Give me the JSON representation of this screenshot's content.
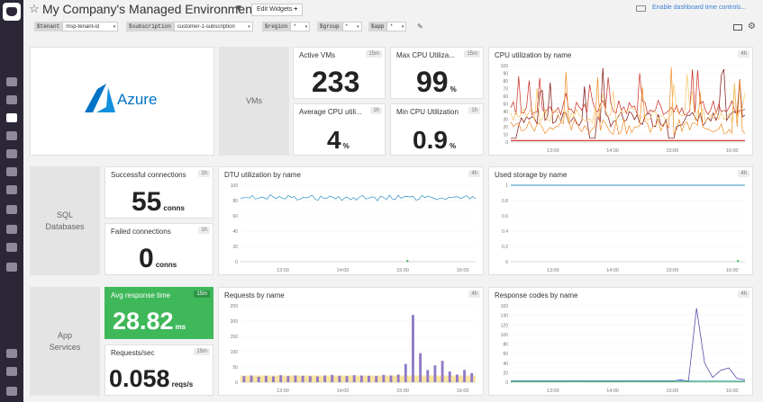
{
  "header": {
    "title": "My Company's Managed Environment",
    "edit_widgets_label": "Edit Widgets",
    "time_controls_link": "Enable dashboard time controls...",
    "template_vars": [
      {
        "name": "$tenant",
        "value": "msp-tenant-id"
      },
      {
        "name": "$subscription",
        "value": "customer-1-subscription"
      },
      {
        "name": "$region",
        "value": "*"
      },
      {
        "name": "$group",
        "value": "*"
      },
      {
        "name": "$app",
        "value": "*"
      }
    ]
  },
  "colors": {
    "sidebar": "#2c2736",
    "good": "#3fb85a",
    "link": "#3d7fd6",
    "azure": "#0072c6"
  },
  "logo": {
    "text": "Azure"
  },
  "vms": {
    "group_label": "VMs",
    "active_vms": {
      "title": "Active VMs",
      "badge": "15m",
      "value": "233"
    },
    "max_cpu": {
      "title": "Max CPU Utiliza...",
      "badge": "15m",
      "value": "99",
      "unit": "%"
    },
    "avg_cpu": {
      "title": "Average CPU utili...",
      "badge": "1h",
      "value": "4",
      "unit": "%"
    },
    "min_cpu": {
      "title": "Min CPU Utilization",
      "badge": "1h",
      "value": "0.9",
      "unit": "%"
    },
    "cpu_by_name": {
      "title": "CPU utilization by name",
      "badge": "4h"
    }
  },
  "sql": {
    "group_label": "SQL\nDatabases",
    "successful": {
      "title": "Successful connections",
      "badge": "1h",
      "value": "55",
      "unit": "conns"
    },
    "failed": {
      "title": "Failed connections",
      "badge": "1h",
      "value": "0",
      "unit": "conns"
    },
    "dtu": {
      "title": "DTU utilization by name",
      "badge": "4h"
    },
    "storage": {
      "title": "Used storage by name",
      "badge": "4h"
    }
  },
  "app": {
    "group_label": "App\nServices",
    "avg_response": {
      "title": "Avg response time",
      "badge": "15m",
      "value": "28.82",
      "unit": "ms"
    },
    "requests_sec": {
      "title": "Requests/sec",
      "badge": "15m",
      "value": "0.058",
      "unit": "reqs/s"
    },
    "requests_by_name": {
      "title": "Requests by name",
      "badge": "4h"
    },
    "response_codes": {
      "title": "Response codes by name",
      "badge": "4h"
    }
  },
  "chart_data": [
    {
      "type": "line",
      "title": "CPU utilization by name",
      "xlabel": "",
      "ylabel": "",
      "x_ticks": [
        "13:00",
        "14:00",
        "15:00",
        "16:00"
      ],
      "y_ticks": [
        0,
        10,
        20,
        30,
        40,
        50,
        60,
        70,
        80,
        90,
        100
      ],
      "ylim": [
        0,
        100
      ],
      "colors": [
        "#7a0d0d",
        "#c92a1d",
        "#f08a24",
        "#f6c86a"
      ]
    },
    {
      "type": "line",
      "title": "DTU utilization by name",
      "xlabel": "",
      "ylabel": "",
      "x_ticks": [
        "13:00",
        "14:00",
        "15:00",
        "16:00"
      ],
      "y_ticks": [
        0,
        20,
        40,
        60,
        80,
        100
      ],
      "ylim": [
        0,
        100
      ],
      "series": [
        {
          "values": [
            83,
            85,
            82,
            84,
            86,
            83,
            81,
            85,
            84,
            82,
            86,
            84,
            83,
            85,
            82,
            84,
            85,
            83,
            84,
            82
          ]
        }
      ],
      "colors": [
        "#2d8fc4"
      ]
    },
    {
      "type": "line",
      "title": "Used storage by name",
      "xlabel": "",
      "ylabel": "",
      "x_ticks": [
        "13:00",
        "14:00",
        "15:00",
        "16:00"
      ],
      "y_ticks": [
        0,
        0.2,
        0.4,
        0.6,
        0.8,
        1
      ],
      "ylim": [
        0,
        1
      ],
      "series": [
        {
          "values": [
            1,
            1,
            1,
            1,
            1,
            1,
            1,
            1,
            1,
            1
          ]
        }
      ],
      "colors": [
        "#2d8fc4"
      ]
    },
    {
      "type": "bar",
      "title": "Requests by name",
      "xlabel": "",
      "ylabel": "",
      "x_ticks": [
        "13:00",
        "14:00",
        "15:00",
        "16:00"
      ],
      "y_ticks": [
        0,
        50,
        100,
        150,
        200,
        250
      ],
      "ylim": [
        0,
        250
      ],
      "series": [
        {
          "values": [
            20,
            22,
            18,
            21,
            19,
            23,
            20,
            22,
            21,
            20,
            19,
            22,
            24,
            21,
            20,
            23,
            22,
            21,
            20,
            24,
            22,
            25,
            60,
            220,
            95,
            40,
            55,
            70,
            35,
            25,
            40,
            30
          ]
        }
      ],
      "colors": [
        "#8f7ac6",
        "#f6d97a"
      ]
    },
    {
      "type": "line",
      "title": "Response codes by name",
      "xlabel": "",
      "ylabel": "",
      "x_ticks": [
        "13:00",
        "14:00",
        "15:00",
        "16:00"
      ],
      "y_ticks": [
        0,
        20,
        40,
        60,
        80,
        100,
        120,
        140,
        160
      ],
      "ylim": [
        0,
        160
      ],
      "series": [
        {
          "values": [
            2,
            2,
            2,
            2,
            2,
            2,
            2,
            2,
            3,
            2,
            2,
            2,
            2,
            2,
            2,
            3,
            2,
            2,
            2,
            2,
            2,
            5,
            2,
            155,
            40,
            10,
            25,
            30,
            8,
            5
          ]
        }
      ],
      "colors": [
        "#5b4aa8",
        "#3fb85a",
        "#2d8fc4"
      ]
    }
  ]
}
